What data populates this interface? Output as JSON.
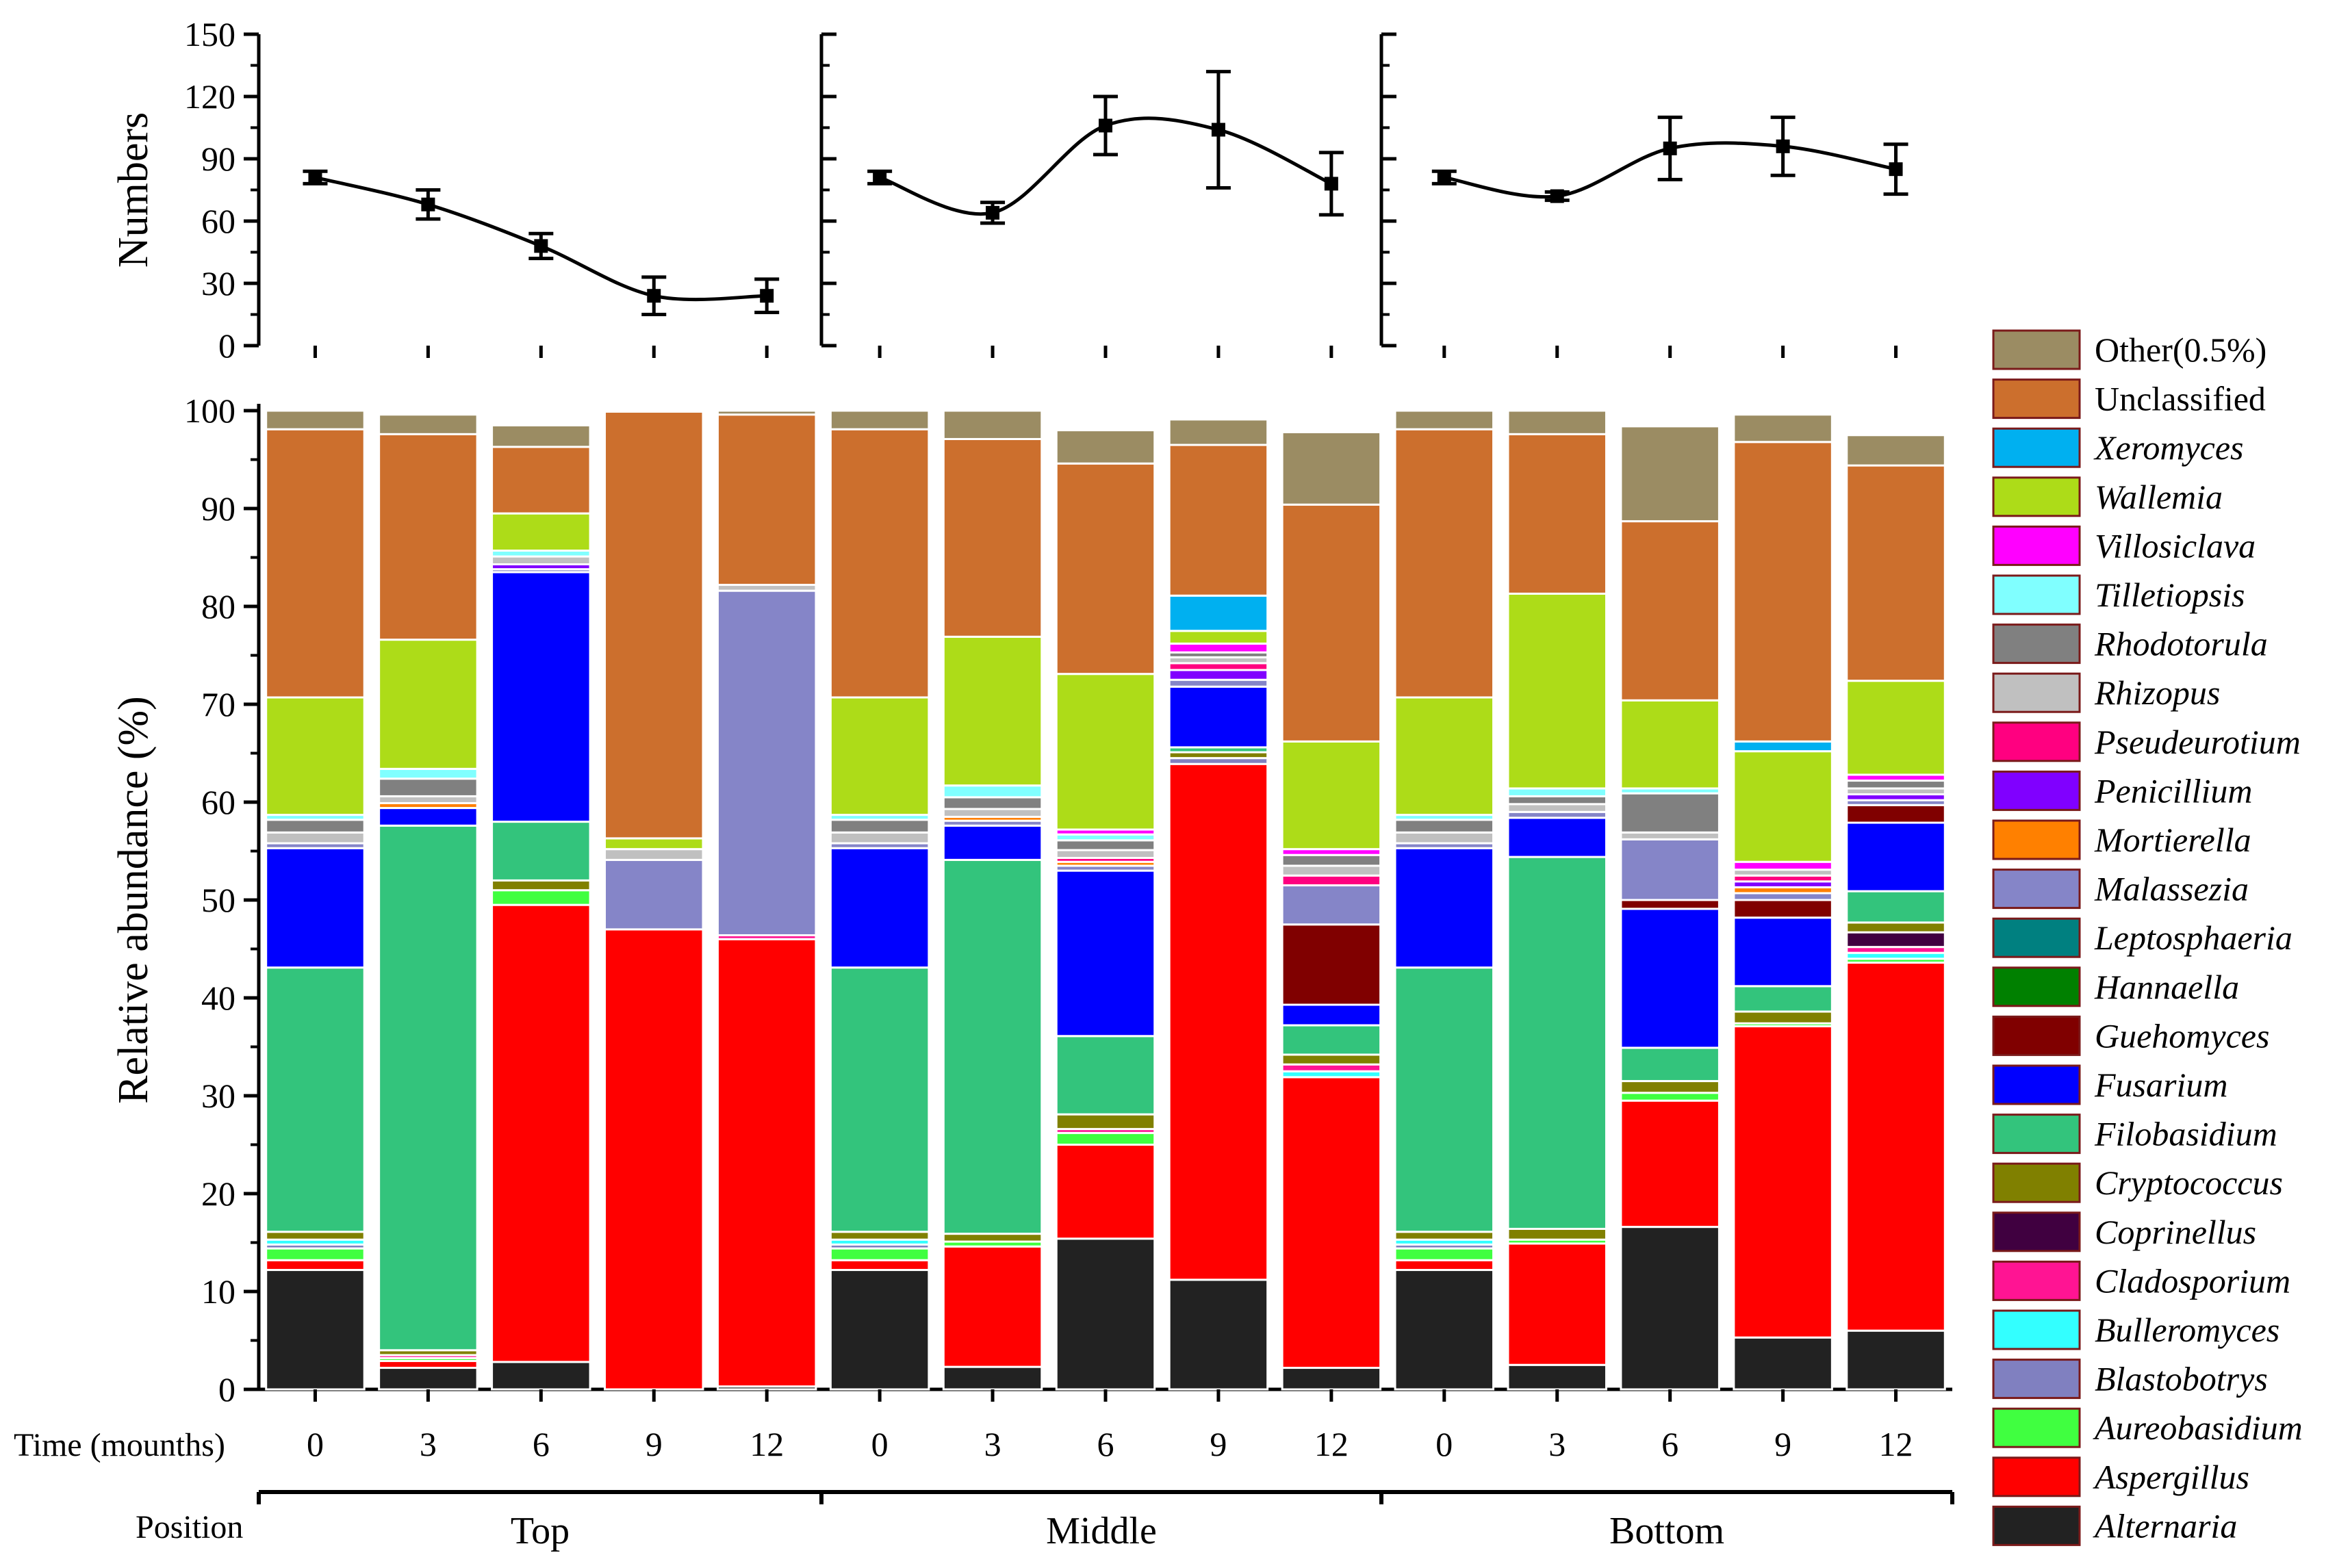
{
  "chart_data": [
    {
      "type": "line",
      "panel": "top",
      "ylabel": "Numbers",
      "ylim": [
        0,
        150
      ],
      "yticks": [
        0,
        30,
        60,
        90,
        120,
        150
      ],
      "x": [
        0,
        3,
        6,
        9,
        12
      ],
      "series": [
        {
          "name": "Top",
          "values": [
            81,
            68,
            48,
            24,
            24
          ],
          "errors": [
            3,
            7,
            6,
            9,
            8
          ]
        },
        {
          "name": "Middle",
          "values": [
            81,
            64,
            106,
            104,
            78
          ],
          "errors": [
            3,
            5,
            14,
            28,
            15
          ]
        },
        {
          "name": "Bottom",
          "values": [
            81,
            72,
            95,
            96,
            85
          ],
          "errors": [
            3,
            2,
            15,
            14,
            12
          ]
        }
      ]
    },
    {
      "type": "bar",
      "stacked": true,
      "ylabel": "Relative abundance (%)",
      "ylim": [
        0,
        100
      ],
      "yticks": [
        0,
        10,
        20,
        30,
        40,
        50,
        60,
        70,
        80,
        90,
        100
      ],
      "row_label_time": "Time (mounths)",
      "row_label_position": "Position",
      "groups": [
        "Top",
        "Middle",
        "Bottom"
      ],
      "categories": [
        "0",
        "3",
        "6",
        "9",
        "12",
        "0",
        "3",
        "6",
        "9",
        "12",
        "0",
        "3",
        "6",
        "9",
        "12"
      ],
      "legend": [
        {
          "name": "Other(0.5%)",
          "color": "#9b8c63",
          "italic": false
        },
        {
          "name": "Unclassified",
          "color": "#cc6f2d",
          "italic": false
        },
        {
          "name": "Xeromyces",
          "color": "#00b0f0",
          "italic": true
        },
        {
          "name": "Wallemia",
          "color": "#addc18",
          "italic": true
        },
        {
          "name": "Villosiclava",
          "color": "#ff00ff",
          "italic": true
        },
        {
          "name": "Tilletiopsis",
          "color": "#80ffff",
          "italic": true
        },
        {
          "name": "Rhodotorula",
          "color": "#808080",
          "italic": true
        },
        {
          "name": "Rhizopus",
          "color": "#c0c0c0",
          "italic": true
        },
        {
          "name": "Pseudeurotium",
          "color": "#ff0080",
          "italic": true
        },
        {
          "name": "Penicillium",
          "color": "#8000ff",
          "italic": true
        },
        {
          "name": "Mortierella",
          "color": "#ff8000",
          "italic": true
        },
        {
          "name": "Malassezia",
          "color": "#8585c8",
          "italic": true
        },
        {
          "name": "Leptosphaeria",
          "color": "#008080",
          "italic": true
        },
        {
          "name": "Hannaella",
          "color": "#008000",
          "italic": true
        },
        {
          "name": "Guehomyces",
          "color": "#800000",
          "italic": true
        },
        {
          "name": "Fusarium",
          "color": "#0000ff",
          "italic": true
        },
        {
          "name": "Filobasidium",
          "color": "#33c47c",
          "italic": true
        },
        {
          "name": "Cryptococcus",
          "color": "#808000",
          "italic": true
        },
        {
          "name": "Coprinellus",
          "color": "#400040",
          "italic": true
        },
        {
          "name": "Cladosporium",
          "color": "#ff1493",
          "italic": true
        },
        {
          "name": "Bulleromyces",
          "color": "#33ffff",
          "italic": true
        },
        {
          "name": "Blastobotrys",
          "color": "#8080c0",
          "italic": true
        },
        {
          "name": "Aureobasidium",
          "color": "#40ff40",
          "italic": true
        },
        {
          "name": "Aspergillus",
          "color": "#ff0000",
          "italic": true
        },
        {
          "name": "Alternaria",
          "color": "#222222",
          "italic": true
        }
      ],
      "stack_order": [
        "Alternaria",
        "Aspergillus",
        "Aureobasidium",
        "Blastobotrys",
        "Bulleromyces",
        "Cladosporium",
        "Coprinellus",
        "Cryptococcus",
        "Filobasidium",
        "Fusarium",
        "Guehomyces",
        "Hannaella",
        "Leptosphaeria",
        "Malassezia",
        "Mortierella",
        "Penicillium",
        "Pseudeurotium",
        "Rhizopus",
        "Rhodotorula",
        "Tilletiopsis",
        "Villosiclava",
        "Wallemia",
        "Xeromyces",
        "Unclassified",
        "Other(0.5%)"
      ],
      "bars": [
        {
          "Alternaria": 12.2,
          "Aspergillus": 1.0,
          "Aureobasidium": 1.2,
          "Blastobotrys": 0.4,
          "Bulleromyces": 0.5,
          "Cryptococcus": 0.8,
          "Filobasidium": 27.0,
          "Fusarium": 12.2,
          "Malassezia": 0.5,
          "Rhizopus": 1.1,
          "Rhodotorula": 1.3,
          "Tilletiopsis": 0.5,
          "Wallemia": 12.0,
          "Unclassified": 27.4,
          "Other(0.5%)": 1.9
        },
        {
          "Alternaria": 2.2,
          "Aspergillus": 0.7,
          "Aureobasidium": 0.3,
          "Cladosporium": 0.3,
          "Cryptococcus": 0.5,
          "Filobasidium": 53.6,
          "Fusarium": 1.8,
          "Mortierella": 0.5,
          "Rhizopus": 0.7,
          "Rhodotorula": 1.8,
          "Tilletiopsis": 1.0,
          "Wallemia": 13.2,
          "Unclassified": 21.0,
          "Other(0.5%)": 2.0
        },
        {
          "Alternaria": 2.8,
          "Aspergillus": 46.7,
          "Aureobasidium": 1.5,
          "Cryptococcus": 1.0,
          "Filobasidium": 6.0,
          "Fusarium": 25.5,
          "Malassezia": 0.3,
          "Penicillium": 0.5,
          "Rhizopus": 0.8,
          "Tilletiopsis": 0.6,
          "Wallemia": 3.8,
          "Unclassified": 6.8,
          "Other(0.5%)": 2.2
        },
        {
          "Aspergillus": 47.0,
          "Malassezia": 7.1,
          "Rhizopus": 1.1,
          "Wallemia": 1.1,
          "Unclassified": 43.6,
          "Other(0.5%)": 0.1
        },
        {
          "Alternaria": 0.3,
          "Aspergillus": 45.7,
          "Malassezia": 35.2,
          "Cladosporium": 0.4,
          "Rhizopus": 0.6,
          "Unclassified": 17.4,
          "Other(0.5%)": 0.4
        },
        {
          "Alternaria": 12.2,
          "Aspergillus": 1.0,
          "Aureobasidium": 1.2,
          "Blastobotrys": 0.4,
          "Bulleromyces": 0.5,
          "Cryptococcus": 0.8,
          "Filobasidium": 27.0,
          "Fusarium": 12.2,
          "Malassezia": 0.5,
          "Rhizopus": 1.1,
          "Rhodotorula": 1.3,
          "Tilletiopsis": 0.5,
          "Wallemia": 12.0,
          "Unclassified": 27.4,
          "Other(0.5%)": 1.9
        },
        {
          "Alternaria": 2.3,
          "Aspergillus": 12.3,
          "Aureobasidium": 0.5,
          "Cryptococcus": 0.8,
          "Filobasidium": 38.2,
          "Fusarium": 3.5,
          "Malassezia": 0.5,
          "Mortierella": 0.4,
          "Rhizopus": 0.8,
          "Rhodotorula": 1.2,
          "Tilletiopsis": 1.2,
          "Wallemia": 15.2,
          "Unclassified": 20.2,
          "Other(0.5%)": 2.9
        },
        {
          "Alternaria": 15.4,
          "Aspergillus": 9.6,
          "Aureobasidium": 1.2,
          "Cryptococcus": 1.5,
          "Filobasidium": 8.0,
          "Fusarium": 16.9,
          "Malassezia": 0.5,
          "Cladosporium": 0.4,
          "Mortierella": 0.4,
          "Pseudeurotium": 0.4,
          "Rhizopus": 0.8,
          "Rhodotorula": 1.0,
          "Tilletiopsis": 0.6,
          "Villosiclava": 0.5,
          "Wallemia": 15.9,
          "Unclassified": 21.5,
          "Other(0.5%)": 3.4
        },
        {
          "Alternaria": 11.2,
          "Aspergillus": 52.7,
          "Blastobotrys": 0.6,
          "Cryptococcus": 0.6,
          "Filobasidium": 0.5,
          "Fusarium": 6.2,
          "Malassezia": 0.7,
          "Penicillium": 1.0,
          "Pseudeurotium": 0.7,
          "Rhizopus": 0.6,
          "Rhodotorula": 0.5,
          "Villosiclava": 0.9,
          "Wallemia": 1.3,
          "Xeromyces": 3.6,
          "Unclassified": 15.4,
          "Other(0.5%)": 2.6
        },
        {
          "Alternaria": 2.2,
          "Aspergillus": 29.7,
          "Bulleromyces": 0.6,
          "Cladosporium": 0.7,
          "Pseudeurotium": 1.0,
          "Cryptococcus": 1.0,
          "Filobasidium": 3.0,
          "Fusarium": 2.1,
          "Guehomyces": 8.2,
          "Malassezia": 4.0,
          "Rhizopus": 1.0,
          "Rhodotorula": 1.1,
          "Villosiclava": 0.6,
          "Wallemia": 11.0,
          "Unclassified": 24.2,
          "Other(0.5%)": 7.4
        },
        {
          "Alternaria": 12.2,
          "Aspergillus": 1.0,
          "Aureobasidium": 1.2,
          "Blastobotrys": 0.4,
          "Bulleromyces": 0.5,
          "Cryptococcus": 0.8,
          "Filobasidium": 27.0,
          "Fusarium": 12.2,
          "Malassezia": 0.5,
          "Rhizopus": 1.1,
          "Rhodotorula": 1.3,
          "Tilletiopsis": 0.5,
          "Wallemia": 12.0,
          "Unclassified": 27.4,
          "Other(0.5%)": 1.9
        },
        {
          "Alternaria": 2.5,
          "Aspergillus": 12.4,
          "Aureobasidium": 0.4,
          "Cryptococcus": 1.1,
          "Filobasidium": 38.0,
          "Fusarium": 4.0,
          "Malassezia": 0.6,
          "Rhizopus": 0.8,
          "Rhodotorula": 0.8,
          "Tilletiopsis": 0.8,
          "Wallemia": 19.9,
          "Unclassified": 16.3,
          "Other(0.5%)": 2.4
        },
        {
          "Alternaria": 16.6,
          "Aspergillus": 12.9,
          "Aureobasidium": 0.8,
          "Cryptococcus": 1.2,
          "Filobasidium": 3.4,
          "Fusarium": 14.2,
          "Guehomyces": 0.9,
          "Malassezia": 6.2,
          "Rhizopus": 0.7,
          "Rhodotorula": 4.0,
          "Tilletiopsis": 0.5,
          "Wallemia": 9.0,
          "Unclassified": 18.3,
          "Other(0.5%)": 9.7
        },
        {
          "Alternaria": 5.3,
          "Aspergillus": 31.8,
          "Aureobasidium": 0.3,
          "Cryptococcus": 1.2,
          "Filobasidium": 2.6,
          "Fusarium": 7.0,
          "Guehomyces": 1.8,
          "Mortierella": 0.6,
          "Pseudeurotium": 0.6,
          "Penicillium": 0.6,
          "Malassezia": 0.7,
          "Rhizopus": 0.6,
          "Villosiclava": 0.8,
          "Wallemia": 11.3,
          "Xeromyces": 1.0,
          "Unclassified": 30.6,
          "Other(0.5%)": 2.8
        },
        {
          "Alternaria": 6.0,
          "Aspergillus": 37.6,
          "Aureobasidium": 0.4,
          "Bulleromyces": 0.6,
          "Malassezia": 0.5,
          "Cladosporium": 0.6,
          "Coprinellus": 1.5,
          "Cryptococcus": 1.0,
          "Filobasidium": 3.2,
          "Fusarium": 7.0,
          "Guehomyces": 1.8,
          "Rhizopus": 0.6,
          "Rhodotorula": 0.8,
          "Penicillium": 0.6,
          "Villosiclava": 0.6,
          "Wallemia": 9.6,
          "Unclassified": 22.0,
          "Other(0.5%)": 3.1
        }
      ]
    }
  ]
}
